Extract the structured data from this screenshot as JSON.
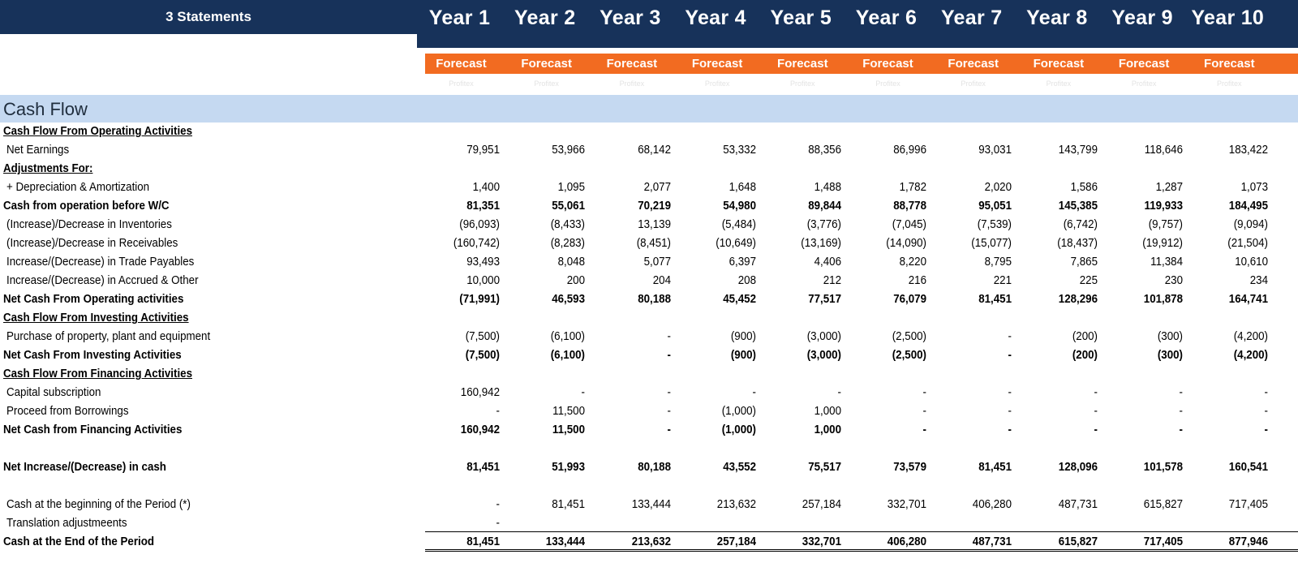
{
  "header": {
    "title": "3 Statements",
    "years": [
      "Year 1",
      "Year 2",
      "Year 3",
      "Year 4",
      "Year 5",
      "Year 6",
      "Year 7",
      "Year 8",
      "Year 9",
      "Year 10"
    ],
    "forecast_label": "Forecast",
    "sublabel": "Profitex"
  },
  "colors": {
    "header_bg": "#17325a",
    "forecast_bg": "#f26b21",
    "section_band": "#c5d9f1"
  },
  "section": {
    "title": "Cash Flow"
  },
  "rows": [
    {
      "label": "Cash Flow From Operating Activities",
      "style": "section",
      "values": []
    },
    {
      "label": "Net Earnings",
      "style": "indent",
      "values": [
        "79,951",
        "53,966",
        "68,142",
        "53,332",
        "88,356",
        "86,996",
        "93,031",
        "143,799",
        "118,646",
        "183,422"
      ]
    },
    {
      "label": "Adjustments For:",
      "style": "section",
      "values": []
    },
    {
      "label": "+ Depreciation & Amortization",
      "style": "indent",
      "values": [
        "1,400",
        "1,095",
        "2,077",
        "1,648",
        "1,488",
        "1,782",
        "2,020",
        "1,586",
        "1,287",
        "1,073"
      ]
    },
    {
      "label": "Cash from operation before W/C",
      "style": "total",
      "values": [
        "81,351",
        "55,061",
        "70,219",
        "54,980",
        "89,844",
        "88,778",
        "95,051",
        "145,385",
        "119,933",
        "184,495"
      ]
    },
    {
      "label": "(Increase)/Decrease in Inventories",
      "style": "indent",
      "values": [
        "(96,093)",
        "(8,433)",
        "13,139",
        "(5,484)",
        "(3,776)",
        "(7,045)",
        "(7,539)",
        "(6,742)",
        "(9,757)",
        "(9,094)"
      ]
    },
    {
      "label": "(Increase)/Decrease in Receivables",
      "style": "indent",
      "values": [
        "(160,742)",
        "(8,283)",
        "(8,451)",
        "(10,649)",
        "(13,169)",
        "(14,090)",
        "(15,077)",
        "(18,437)",
        "(19,912)",
        "(21,504)"
      ]
    },
    {
      "label": "Increase/(Decrease) in Trade Payables",
      "style": "indent",
      "values": [
        "93,493",
        "8,048",
        "5,077",
        "6,397",
        "4,406",
        "8,220",
        "8,795",
        "7,865",
        "11,384",
        "10,610"
      ]
    },
    {
      "label": "Increase/(Decrease) in Accrued & Other",
      "style": "indent",
      "values": [
        "10,000",
        "200",
        "204",
        "208",
        "212",
        "216",
        "221",
        "225",
        "230",
        "234"
      ]
    },
    {
      "label": "Net Cash From Operating activities",
      "style": "total",
      "values": [
        "(71,991)",
        "46,593",
        "80,188",
        "45,452",
        "77,517",
        "76,079",
        "81,451",
        "128,296",
        "101,878",
        "164,741"
      ]
    },
    {
      "label": "Cash Flow From Investing Activities",
      "style": "section",
      "values": []
    },
    {
      "label": "Purchase of property, plant and equipment",
      "style": "indent",
      "values": [
        "(7,500)",
        "(6,100)",
        "-",
        "(900)",
        "(3,000)",
        "(2,500)",
        "-",
        "(200)",
        "(300)",
        "(4,200)"
      ]
    },
    {
      "label": "Net Cash From Investing Activities",
      "style": "total",
      "values": [
        "(7,500)",
        "(6,100)",
        "-",
        "(900)",
        "(3,000)",
        "(2,500)",
        "-",
        "(200)",
        "(300)",
        "(4,200)"
      ]
    },
    {
      "label": "Cash Flow From Financing Activities",
      "style": "section",
      "values": []
    },
    {
      "label": "Capital subscription",
      "style": "indent",
      "values": [
        "160,942",
        "-",
        "-",
        "-",
        "-",
        "-",
        "-",
        "-",
        "-",
        "-"
      ]
    },
    {
      "label": "Proceed from Borrowings",
      "style": "indent",
      "values": [
        "-",
        "11,500",
        "-",
        "(1,000)",
        "1,000",
        "-",
        "-",
        "-",
        "-",
        "-"
      ]
    },
    {
      "label": "Net Cash from Financing Activities",
      "style": "total",
      "values": [
        "160,942",
        "11,500",
        "-",
        "(1,000)",
        "1,000",
        "-",
        "-",
        "-",
        "-",
        "-"
      ]
    },
    {
      "label": "",
      "style": "blank",
      "values": []
    },
    {
      "label": "Net Increase/(Decrease) in cash",
      "style": "total",
      "values": [
        "81,451",
        "51,993",
        "80,188",
        "43,552",
        "75,517",
        "73,579",
        "81,451",
        "128,096",
        "101,578",
        "160,541"
      ]
    },
    {
      "label": "",
      "style": "blank",
      "values": []
    },
    {
      "label": "Cash at the beginning of the Period (*)",
      "style": "indent",
      "values": [
        "-",
        "81,451",
        "133,444",
        "213,632",
        "257,184",
        "332,701",
        "406,280",
        "487,731",
        "615,827",
        "717,405"
      ]
    },
    {
      "label": "Translation adjustmeents",
      "style": "indent",
      "values": [
        "-"
      ]
    },
    {
      "label": "Cash at the End of the Period",
      "style": "total",
      "values": [
        "81,451",
        "133,444",
        "213,632",
        "257,184",
        "332,701",
        "406,280",
        "487,731",
        "615,827",
        "717,405",
        "877,946"
      ]
    }
  ]
}
